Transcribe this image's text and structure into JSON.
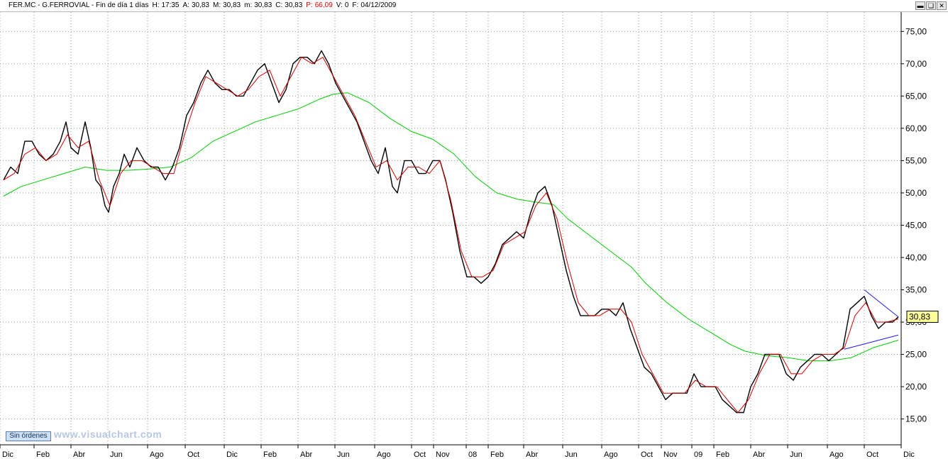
{
  "header": {
    "symbol": "FER.MC - G.FERROVIAL - Fin de día 1 días",
    "fields": [
      {
        "label": "H:",
        "value": "17:35"
      },
      {
        "label": "A:",
        "value": "30,83"
      },
      {
        "label": "M:",
        "value": "30,83"
      },
      {
        "label": "m:",
        "value": "30,83"
      },
      {
        "label": "C:",
        "value": "30,83"
      },
      {
        "label": "P:",
        "value": "66,09",
        "color": "#e00000"
      },
      {
        "label": "V:",
        "value": "0"
      },
      {
        "label": "F:",
        "value": "04/12/2009"
      }
    ],
    "window_buttons": [
      "minimize-icon",
      "restore-icon",
      "close-icon"
    ]
  },
  "badge": "Sin órdenes",
  "watermark": "www.visualchart.com",
  "chart_data": {
    "type": "line",
    "price_tag": "30,83",
    "yticks": [
      "15,00",
      "20,00",
      "25,00",
      "30,00",
      "35,00",
      "40,00",
      "45,00",
      "50,00",
      "55,00",
      "60,00",
      "65,00",
      "70,00",
      "75,00"
    ],
    "ylim": [
      11,
      78
    ],
    "xlim": [
      0,
      1270
    ],
    "xticks": [
      {
        "x": 0,
        "label": "Dic"
      },
      {
        "x": 48,
        "label": "Feb"
      },
      {
        "x": 100,
        "label": "Abr"
      },
      {
        "x": 152,
        "label": "Jun"
      },
      {
        "x": 208,
        "label": "Ago"
      },
      {
        "x": 261,
        "label": "Oct"
      },
      {
        "x": 316,
        "label": "Dic"
      },
      {
        "x": 368,
        "label": "Feb"
      },
      {
        "x": 420,
        "label": "Abr"
      },
      {
        "x": 472,
        "label": "Jun"
      },
      {
        "x": 528,
        "label": "Ago"
      },
      {
        "x": 580,
        "label": "Oct"
      },
      {
        "x": 611,
        "label": "Nov"
      },
      {
        "x": 657,
        "label": "08"
      },
      {
        "x": 688,
        "label": "Feb"
      },
      {
        "x": 738,
        "label": "Abr"
      },
      {
        "x": 793,
        "label": "Jun"
      },
      {
        "x": 848,
        "label": "Ago"
      },
      {
        "x": 900,
        "label": "Oct"
      },
      {
        "x": 932,
        "label": "Nov"
      },
      {
        "x": 975,
        "label": "09"
      },
      {
        "x": 1006,
        "label": "Feb"
      },
      {
        "x": 1058,
        "label": "Abr"
      },
      {
        "x": 1110,
        "label": "Jun"
      },
      {
        "x": 1166,
        "label": "Ago"
      },
      {
        "x": 1218,
        "label": "Oct"
      },
      {
        "x": 1270,
        "label": "Dic"
      }
    ],
    "series": [
      {
        "color": "#000000",
        "points": [
          [
            5,
            52
          ],
          [
            15,
            54
          ],
          [
            25,
            53
          ],
          [
            35,
            58
          ],
          [
            45,
            58
          ],
          [
            55,
            56
          ],
          [
            65,
            55
          ],
          [
            75,
            56
          ],
          [
            85,
            58
          ],
          [
            93,
            61
          ],
          [
            100,
            57
          ],
          [
            110,
            56
          ],
          [
            120,
            61
          ],
          [
            128,
            57
          ],
          [
            135,
            52
          ],
          [
            142,
            51
          ],
          [
            148,
            48
          ],
          [
            153,
            47
          ],
          [
            160,
            51
          ],
          [
            168,
            53
          ],
          [
            175,
            56
          ],
          [
            183,
            54
          ],
          [
            193,
            57
          ],
          [
            203,
            55
          ],
          [
            213,
            54
          ],
          [
            223,
            54
          ],
          [
            233,
            52
          ],
          [
            243,
            54
          ],
          [
            253,
            57
          ],
          [
            263,
            62
          ],
          [
            273,
            64
          ],
          [
            283,
            67
          ],
          [
            293,
            69
          ],
          [
            303,
            67
          ],
          [
            313,
            66
          ],
          [
            323,
            66
          ],
          [
            333,
            65
          ],
          [
            343,
            65
          ],
          [
            353,
            67
          ],
          [
            363,
            69
          ],
          [
            373,
            70
          ],
          [
            383,
            67
          ],
          [
            393,
            64
          ],
          [
            403,
            66
          ],
          [
            413,
            70
          ],
          [
            423,
            71
          ],
          [
            433,
            71
          ],
          [
            443,
            70
          ],
          [
            453,
            72
          ],
          [
            463,
            70
          ],
          [
            473,
            67
          ],
          [
            483,
            65
          ],
          [
            493,
            63
          ],
          [
            503,
            61
          ],
          [
            513,
            58
          ],
          [
            523,
            55
          ],
          [
            533,
            53
          ],
          [
            543,
            57
          ],
          [
            553,
            51
          ],
          [
            560,
            50
          ],
          [
            570,
            55
          ],
          [
            580,
            55
          ],
          [
            590,
            53
          ],
          [
            600,
            53
          ],
          [
            610,
            55
          ],
          [
            620,
            55
          ],
          [
            628,
            52
          ],
          [
            638,
            47
          ],
          [
            648,
            41
          ],
          [
            658,
            37
          ],
          [
            668,
            37
          ],
          [
            678,
            36
          ],
          [
            688,
            37
          ],
          [
            698,
            39
          ],
          [
            708,
            42
          ],
          [
            718,
            43
          ],
          [
            728,
            44
          ],
          [
            738,
            43
          ],
          [
            748,
            47
          ],
          [
            758,
            50
          ],
          [
            768,
            51
          ],
          [
            778,
            48
          ],
          [
            788,
            43
          ],
          [
            798,
            38
          ],
          [
            808,
            34
          ],
          [
            818,
            31
          ],
          [
            828,
            31
          ],
          [
            838,
            31
          ],
          [
            848,
            32
          ],
          [
            858,
            32
          ],
          [
            868,
            31
          ],
          [
            878,
            33
          ],
          [
            888,
            29
          ],
          [
            898,
            26
          ],
          [
            908,
            23
          ],
          [
            918,
            22
          ],
          [
            928,
            20
          ],
          [
            938,
            18
          ],
          [
            948,
            19
          ],
          [
            958,
            19
          ],
          [
            968,
            19
          ],
          [
            978,
            22
          ],
          [
            988,
            20
          ],
          [
            998,
            20
          ],
          [
            1008,
            20
          ],
          [
            1018,
            18
          ],
          [
            1028,
            17
          ],
          [
            1038,
            16
          ],
          [
            1048,
            16
          ],
          [
            1058,
            20
          ],
          [
            1068,
            22
          ],
          [
            1078,
            25
          ],
          [
            1088,
            25
          ],
          [
            1098,
            25
          ],
          [
            1108,
            22
          ],
          [
            1118,
            21
          ],
          [
            1128,
            23
          ],
          [
            1138,
            24
          ],
          [
            1148,
            25
          ],
          [
            1158,
            25
          ],
          [
            1168,
            24
          ],
          [
            1178,
            25
          ],
          [
            1188,
            26
          ],
          [
            1198,
            32
          ],
          [
            1208,
            33
          ],
          [
            1218,
            34
          ],
          [
            1228,
            31
          ],
          [
            1238,
            29
          ],
          [
            1248,
            30
          ],
          [
            1258,
            30
          ],
          [
            1266,
            30.8
          ]
        ]
      },
      {
        "color": "#d40000",
        "points": [
          [
            5,
            52
          ],
          [
            20,
            53
          ],
          [
            35,
            56
          ],
          [
            50,
            57
          ],
          [
            65,
            55
          ],
          [
            80,
            56
          ],
          [
            95,
            59
          ],
          [
            110,
            57
          ],
          [
            125,
            58
          ],
          [
            140,
            52
          ],
          [
            155,
            48
          ],
          [
            170,
            53
          ],
          [
            185,
            55
          ],
          [
            200,
            55
          ],
          [
            215,
            54
          ],
          [
            230,
            53
          ],
          [
            245,
            53
          ],
          [
            260,
            59
          ],
          [
            275,
            64
          ],
          [
            290,
            68
          ],
          [
            305,
            67
          ],
          [
            320,
            66
          ],
          [
            335,
            65
          ],
          [
            350,
            66
          ],
          [
            365,
            68
          ],
          [
            380,
            69
          ],
          [
            395,
            65
          ],
          [
            410,
            68
          ],
          [
            425,
            71
          ],
          [
            440,
            70
          ],
          [
            455,
            71
          ],
          [
            470,
            68
          ],
          [
            485,
            65
          ],
          [
            500,
            62
          ],
          [
            515,
            58
          ],
          [
            530,
            54
          ],
          [
            545,
            55
          ],
          [
            560,
            52
          ],
          [
            575,
            54
          ],
          [
            590,
            54
          ],
          [
            605,
            53
          ],
          [
            620,
            55
          ],
          [
            635,
            49
          ],
          [
            650,
            41
          ],
          [
            665,
            37
          ],
          [
            680,
            37
          ],
          [
            695,
            38
          ],
          [
            710,
            42
          ],
          [
            725,
            43
          ],
          [
            740,
            44
          ],
          [
            755,
            48
          ],
          [
            770,
            50
          ],
          [
            785,
            46
          ],
          [
            800,
            39
          ],
          [
            815,
            33
          ],
          [
            830,
            31
          ],
          [
            845,
            31
          ],
          [
            860,
            32
          ],
          [
            875,
            32
          ],
          [
            890,
            30
          ],
          [
            905,
            25
          ],
          [
            920,
            22
          ],
          [
            935,
            19
          ],
          [
            950,
            19
          ],
          [
            965,
            19
          ],
          [
            980,
            21
          ],
          [
            995,
            20
          ],
          [
            1010,
            20
          ],
          [
            1025,
            18
          ],
          [
            1040,
            16
          ],
          [
            1055,
            18
          ],
          [
            1070,
            22
          ],
          [
            1085,
            25
          ],
          [
            1100,
            25
          ],
          [
            1115,
            22
          ],
          [
            1130,
            22
          ],
          [
            1145,
            24
          ],
          [
            1160,
            25
          ],
          [
            1175,
            25
          ],
          [
            1190,
            26
          ],
          [
            1205,
            31
          ],
          [
            1220,
            33
          ],
          [
            1235,
            30
          ],
          [
            1250,
            30
          ],
          [
            1266,
            30.5
          ]
        ]
      },
      {
        "color": "#00cc00",
        "points": [
          [
            5,
            49.5
          ],
          [
            30,
            51
          ],
          [
            60,
            52
          ],
          [
            90,
            53
          ],
          [
            120,
            54
          ],
          [
            150,
            53.5
          ],
          [
            180,
            53.5
          ],
          [
            210,
            53.7
          ],
          [
            240,
            54
          ],
          [
            270,
            55.5
          ],
          [
            300,
            58
          ],
          [
            330,
            59.5
          ],
          [
            360,
            61
          ],
          [
            390,
            62
          ],
          [
            420,
            63
          ],
          [
            450,
            64.5
          ],
          [
            470,
            65.3
          ],
          [
            490,
            65.5
          ],
          [
            520,
            64
          ],
          [
            550,
            61.5
          ],
          [
            580,
            59.5
          ],
          [
            610,
            58.3
          ],
          [
            640,
            56
          ],
          [
            670,
            52.5
          ],
          [
            700,
            50
          ],
          [
            730,
            49
          ],
          [
            760,
            48.5
          ],
          [
            780,
            48.2
          ],
          [
            800,
            46
          ],
          [
            830,
            43.5
          ],
          [
            860,
            41
          ],
          [
            890,
            38.5
          ],
          [
            910,
            36
          ],
          [
            940,
            33
          ],
          [
            970,
            30.5
          ],
          [
            1000,
            28.5
          ],
          [
            1030,
            26.5
          ],
          [
            1050,
            25.5
          ],
          [
            1080,
            24.8
          ],
          [
            1110,
            24.5
          ],
          [
            1140,
            24
          ],
          [
            1170,
            24
          ],
          [
            1200,
            24.5
          ],
          [
            1230,
            26
          ],
          [
            1266,
            27.2
          ]
        ]
      }
    ],
    "trendlines": [
      {
        "color": "#1a1aff",
        "from": [
          1218,
          35
        ],
        "to": [
          1266,
          30.8
        ]
      },
      {
        "color": "#1a1aff",
        "from": [
          1190,
          25.8
        ],
        "to": [
          1266,
          28
        ]
      }
    ]
  }
}
